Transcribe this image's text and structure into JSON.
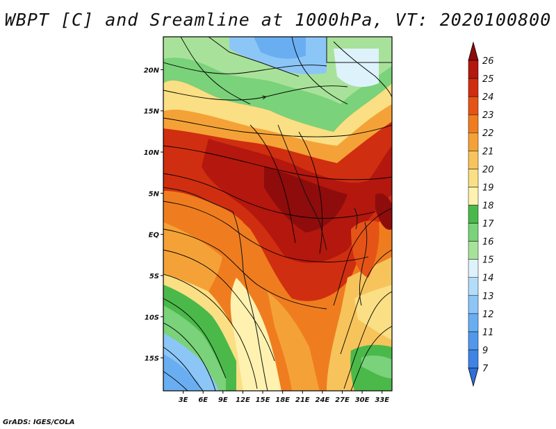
{
  "title": "WBPT [C] and Sreamline at 1000hPa, VT: 2020100800",
  "credit": "GrADS: IGES/COLA",
  "map": {
    "lat_range": [
      -19,
      24
    ],
    "lon_range": [
      0,
      34.5
    ],
    "lat_ticks": [
      {
        "value": 20,
        "label": "20N"
      },
      {
        "value": 15,
        "label": "15N"
      },
      {
        "value": 10,
        "label": "10N"
      },
      {
        "value": 5,
        "label": "5N"
      },
      {
        "value": 0,
        "label": "EQ"
      },
      {
        "value": -5,
        "label": "5S"
      },
      {
        "value": -10,
        "label": "10S"
      },
      {
        "value": -15,
        "label": "15S"
      }
    ],
    "lon_ticks": [
      {
        "value": 3,
        "label": "3E"
      },
      {
        "value": 6,
        "label": "6E"
      },
      {
        "value": 9,
        "label": "9E"
      },
      {
        "value": 12,
        "label": "12E"
      },
      {
        "value": 15,
        "label": "15E"
      },
      {
        "value": 18,
        "label": "18E"
      },
      {
        "value": 21,
        "label": "21E"
      },
      {
        "value": 24,
        "label": "24E"
      },
      {
        "value": 27,
        "label": "27E"
      },
      {
        "value": 30,
        "label": "30E"
      },
      {
        "value": 33,
        "label": "33E"
      }
    ]
  },
  "colorbar": {
    "levels": [
      "7",
      "9",
      "11",
      "12",
      "13",
      "14",
      "15",
      "16",
      "17",
      "18",
      "19",
      "20",
      "21",
      "22",
      "23",
      "24",
      "25",
      "26"
    ],
    "colors": [
      "#2f6fd8",
      "#3f83e6",
      "#5297ec",
      "#6aaef2",
      "#8cc6f7",
      "#b2dcfa",
      "#def2fb",
      "#a8e29a",
      "#7ad27a",
      "#4ab94a",
      "#fff2b0",
      "#fadf84",
      "#f7c45c",
      "#f4a237",
      "#ef7d1f",
      "#e55416",
      "#d02e10",
      "#b3170e",
      "#8e0c0c"
    ]
  },
  "icons": {
    "colorbar_arrows": "triangle-arrow-icon"
  }
}
